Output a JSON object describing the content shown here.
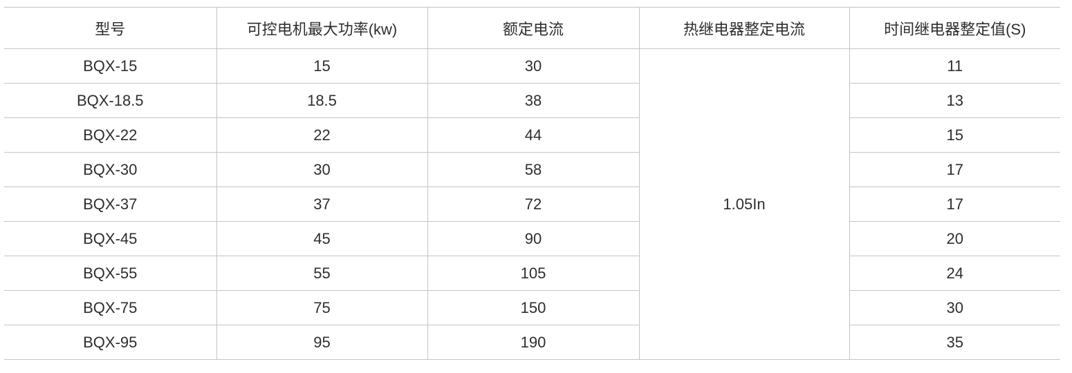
{
  "headers": [
    "型号",
    "可控电机最大功率(kw)",
    "额定电流",
    "热继电器整定电流",
    "时间继电器整定值(S)"
  ],
  "thermal_relay_setting": "1.05In",
  "rows": [
    {
      "model": "BQX-15",
      "power": "15",
      "current": "30",
      "time": "11"
    },
    {
      "model": "BQX-18.5",
      "power": "18.5",
      "current": "38",
      "time": "13"
    },
    {
      "model": "BQX-22",
      "power": "22",
      "current": "44",
      "time": "15"
    },
    {
      "model": "BQX-30",
      "power": "30",
      "current": "58",
      "time": "17"
    },
    {
      "model": "BQX-37",
      "power": "37",
      "current": "72",
      "time": "17"
    },
    {
      "model": "BQX-45",
      "power": "45",
      "current": "90",
      "time": "20"
    },
    {
      "model": "BQX-55",
      "power": "55",
      "current": "105",
      "time": "24"
    },
    {
      "model": "BQX-75",
      "power": "75",
      "current": "150",
      "time": "30"
    },
    {
      "model": "BQX-95",
      "power": "95",
      "current": "190",
      "time": "35"
    }
  ]
}
